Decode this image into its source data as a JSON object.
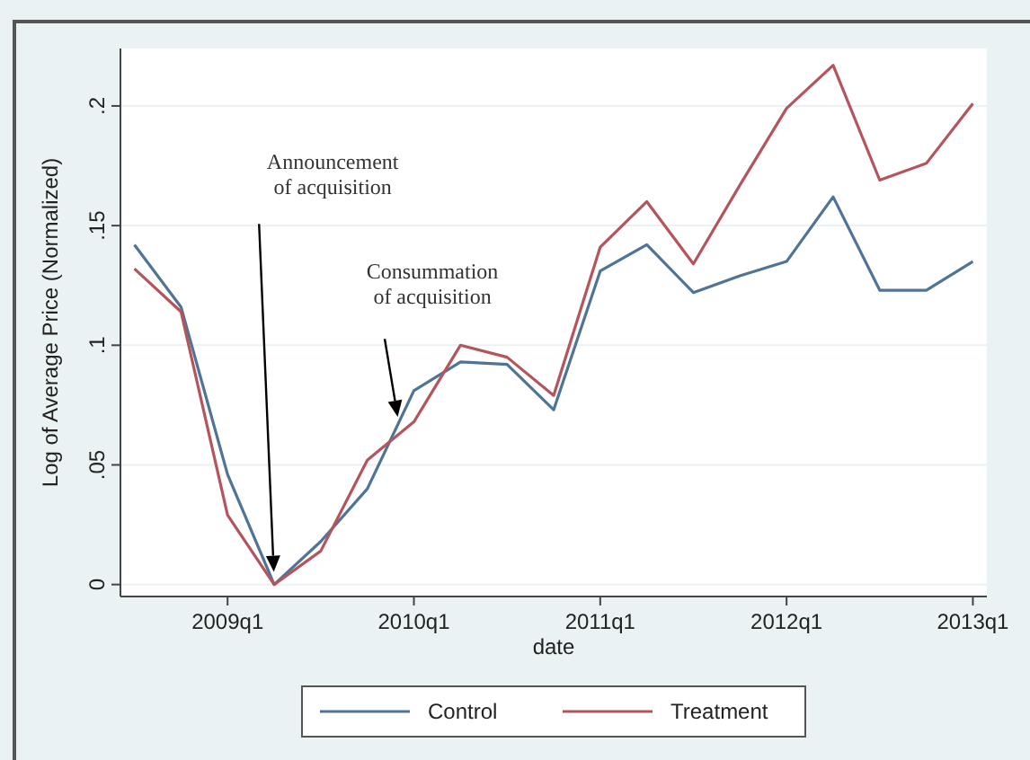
{
  "chart_data": {
    "type": "line",
    "xlabel": "date",
    "ylabel": "Log of Average Price (Normalized)",
    "categories": [
      null,
      null,
      "2009q1",
      null,
      null,
      null,
      "2010q1",
      null,
      null,
      null,
      "2011q1",
      null,
      null,
      null,
      "2012q1",
      null,
      null,
      null,
      "2013q1"
    ],
    "series": [
      {
        "name": "Control",
        "color": "#4f7496",
        "values": [
          0.142,
          0.116,
          0.046,
          0,
          0.018,
          0.04,
          0.081,
          0.093,
          0.092,
          0.073,
          0.131,
          0.142,
          0.122,
          0.129,
          0.135,
          0.162,
          0.123,
          0.123,
          0.135
        ]
      },
      {
        "name": "Treatment",
        "color": "#b5545c",
        "values": [
          0.132,
          0.114,
          0.029,
          0,
          0.014,
          0.052,
          0.068,
          0.1,
          0.095,
          0.079,
          0.141,
          0.16,
          0.134,
          0.167,
          0.199,
          0.217,
          0.169,
          0.176,
          0.201
        ]
      }
    ],
    "ylim": [
      -0.005,
      0.224
    ],
    "yticks": [
      0,
      {
        "value": 0.05,
        "label": ".05"
      },
      {
        "value": 0.1,
        "label": ".1"
      },
      {
        "value": 0.15,
        "label": ".15"
      },
      {
        "value": 0.2,
        "label": ".2"
      }
    ],
    "grid": "y",
    "legend": "bottom",
    "line_style": "solid",
    "marker": "none",
    "annotations": [
      "Announcement of acquisition",
      "Consummation of acquisition"
    ]
  }
}
